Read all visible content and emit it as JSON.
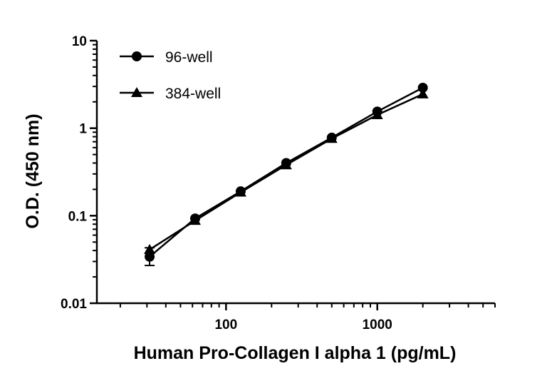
{
  "chart_data": {
    "type": "line",
    "xlabel": "Human Pro-Collagen I alpha 1 (pg/mL)",
    "ylabel": "O.D. (450 nm)",
    "x_scale": "log",
    "y_scale": "log",
    "xlim": [
      14,
      6000
    ],
    "ylim": [
      0.01,
      10
    ],
    "x_ticks": [
      100,
      1000
    ],
    "x_tick_labels": [
      "100",
      "1000"
    ],
    "y_ticks": [
      0.01,
      0.1,
      1,
      10
    ],
    "y_tick_labels": [
      "0.01",
      "0.1",
      "1",
      "10"
    ],
    "grid": false,
    "legend_position": "top-left",
    "x": [
      31.25,
      62.5,
      125,
      250,
      500,
      1000,
      2000
    ],
    "series": [
      {
        "name": "96-well",
        "marker": "circle",
        "values": [
          0.034,
          0.093,
          0.19,
          0.4,
          0.78,
          1.55,
          2.9
        ],
        "error_low": [
          0.027,
          null,
          null,
          null,
          null,
          null,
          null
        ],
        "error_high": [
          0.043,
          null,
          null,
          null,
          null,
          null,
          null
        ]
      },
      {
        "name": "384-well",
        "marker": "triangle",
        "values": [
          0.041,
          0.088,
          0.185,
          0.38,
          0.76,
          1.42,
          2.45
        ]
      }
    ],
    "color": "#000000"
  }
}
